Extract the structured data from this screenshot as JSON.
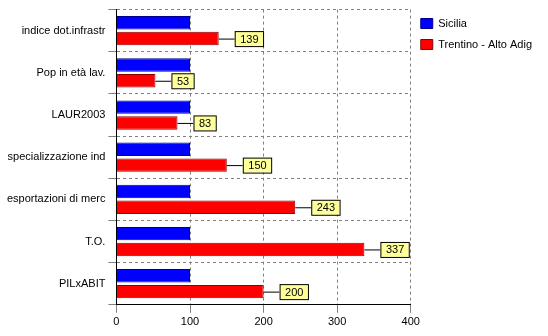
{
  "chart_data": {
    "type": "bar",
    "orientation": "horizontal",
    "categories": [
      "indice dot.infrastr",
      "Pop in età lav.",
      "LAUR2003",
      "specializzazione ind",
      "esportazioni di merc",
      "T.O.",
      "PILxABIT"
    ],
    "series": [
      {
        "name": "Sicilia",
        "color": "#0000ff",
        "values": [
          100,
          100,
          100,
          100,
          100,
          100,
          100
        ]
      },
      {
        "name": "Trentino - Alto Adig",
        "color": "#ff0000",
        "values": [
          139,
          53,
          83,
          150,
          243,
          337,
          200
        ],
        "data_labels": true
      }
    ],
    "xlim": [
      0,
      400
    ],
    "xticks": [
      0,
      100,
      200,
      300,
      400
    ],
    "grid": true,
    "legend": "upper right"
  }
}
